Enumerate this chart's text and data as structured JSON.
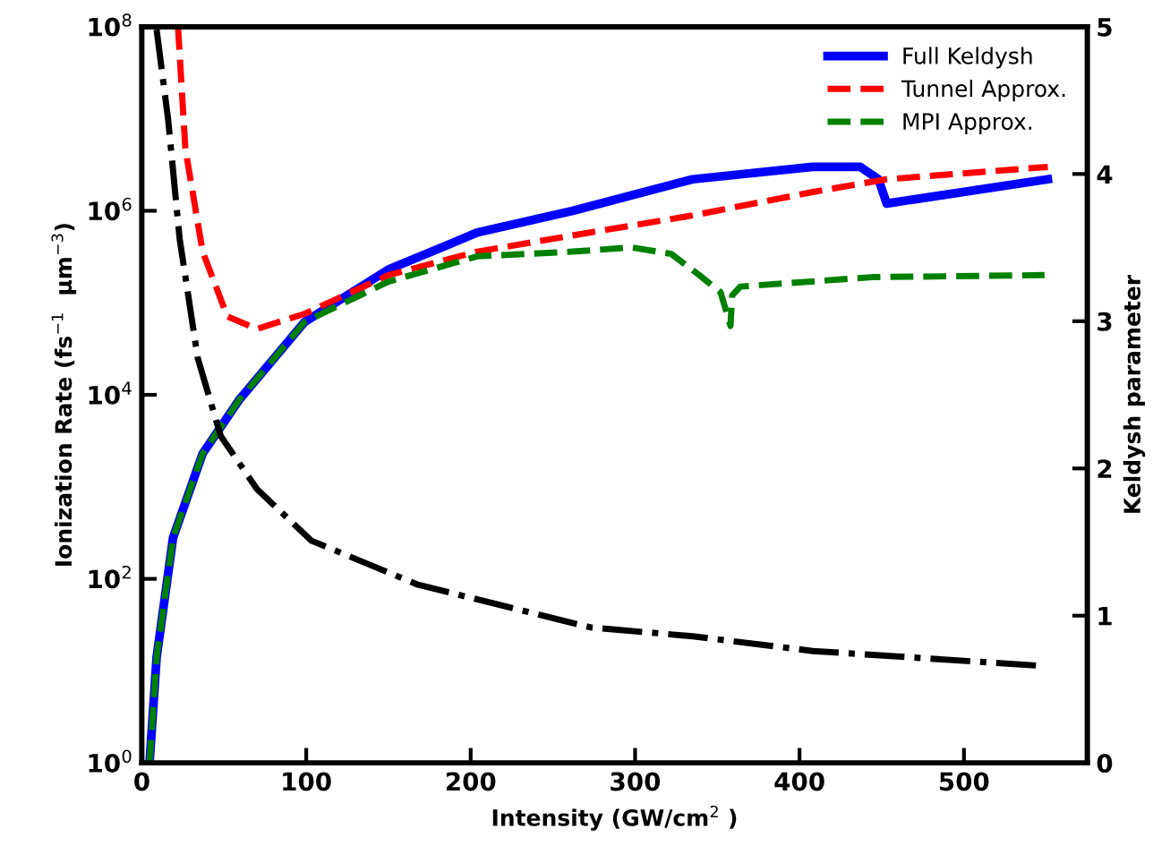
{
  "chart_data": {
    "type": "line",
    "xlabel": "Intensity (GW/cm$^{2}$ )",
    "ylabel": "Ionization Rate (fs$^{−1}$  μm$^{−3}$)",
    "y2label": "Keldysh parameter",
    "log": "y",
    "legend": "top right",
    "grid": false,
    "xlim": [
      0,
      575
    ],
    "xticks": [
      0,
      100,
      200,
      300,
      400,
      500
    ],
    "ylim": [
      1,
      100000000
    ],
    "yticks": [
      {
        "value": 1,
        "label": "10$^{0}$"
      },
      {
        "value": 100,
        "label": "10$^{2}$"
      },
      {
        "value": 10000,
        "label": "10$^{4}$"
      },
      {
        "value": 1000000,
        "label": "10$^{6}$"
      },
      {
        "value": 100000000,
        "label": "10$^{8}$"
      }
    ],
    "y2lim": [
      0,
      5
    ],
    "y2ticks": [
      0,
      1,
      2,
      3,
      4,
      5
    ],
    "series": [
      {
        "name": "Full Keldysh",
        "color": "#0000ff",
        "line_style": "solid",
        "x": [
          4.7,
          9,
          19,
          37,
          59,
          99,
          150,
          204,
          262,
          335,
          408,
          437,
          448,
          453,
          551
        ],
        "values": [
          1,
          14,
          280,
          2300,
          8700,
          62000,
          230000,
          580000,
          1000000,
          2200000,
          3000000,
          3000000,
          2200000,
          1200000,
          2200000
        ]
      },
      {
        "name": "Tunnel Approx.",
        "color": "#ff0000",
        "line_style": "dashed",
        "x": [
          22,
          26.5,
          37,
          52,
          70,
          99,
          150,
          204,
          262,
          335,
          408,
          453,
          551
        ],
        "values": [
          100000000,
          4700000,
          360000,
          71000,
          52000,
          76000,
          200000,
          360000,
          540000,
          890000,
          1600000,
          2200000,
          3000000
        ]
      },
      {
        "name": "MPI Approx.",
        "color": "#008000",
        "line_style": "dashed",
        "x": [
          4.7,
          9,
          19,
          37,
          59,
          99,
          150,
          204,
          262,
          298,
          322,
          339,
          352,
          358,
          359,
          364,
          444,
          549
        ],
        "values": [
          1,
          14,
          280,
          2300,
          8700,
          62000,
          170000,
          320000,
          360000,
          400000,
          340000,
          200000,
          130000,
          56000,
          120000,
          150000,
          190000,
          200000
        ]
      },
      {
        "color": "#000000",
        "line_style": "dashdot",
        "axis": "y2",
        "x": [
          9,
          16,
          23,
          34,
          48,
          70,
          103,
          168,
          273,
          335,
          408,
          546
        ],
        "values": [
          4.98,
          4.37,
          3.56,
          2.75,
          2.22,
          1.86,
          1.51,
          1.21,
          0.92,
          0.86,
          0.76,
          0.66
        ]
      }
    ]
  }
}
